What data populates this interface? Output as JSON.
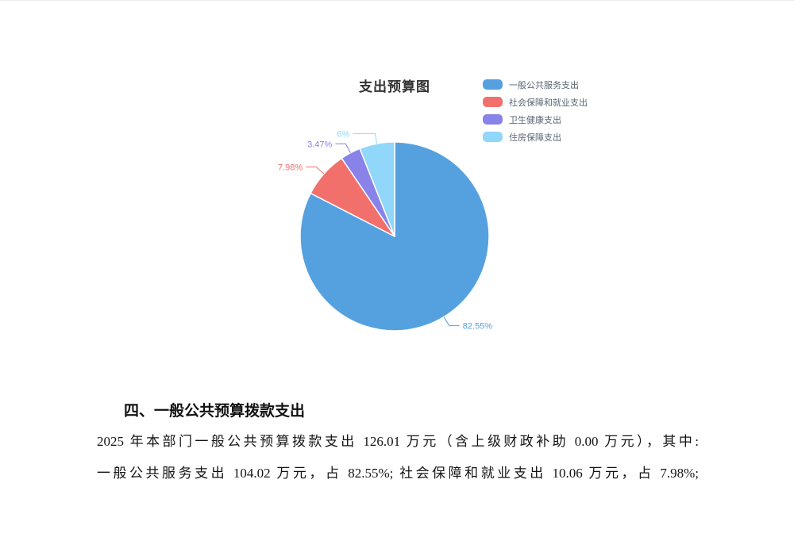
{
  "window": {
    "background": "#ffffff"
  },
  "chart_data": {
    "type": "pie",
    "title": "支出预算图",
    "legend_position": "top-right",
    "direction": "clockwise",
    "start_angle": "top",
    "slices": [
      {
        "name": "一般公共服务支出",
        "value": 82.55,
        "label": "82.55%",
        "color": "#55A1E0"
      },
      {
        "name": "社会保障和就业支出",
        "value": 7.98,
        "label": "7.98%",
        "color": "#F1706C"
      },
      {
        "name": "卫生健康支出",
        "value": 3.47,
        "label": "3.47%",
        "color": "#8982E9"
      },
      {
        "name": "住房保障支出",
        "value": 6,
        "label": "6%",
        "color": "#90D7F9"
      }
    ]
  },
  "section": {
    "heading": "四、一般公共预算拨款支出",
    "paragraph_lines": [
      "2025 年本部门一般公共预算拨款支出 126.01 万元（含上级财政补助 0.00 万元），其中:",
      "一般公共服务支出 104.02 万元，占 82.55%; 社会保障和就业支出 10.06 万元，占 7.98%;"
    ]
  }
}
